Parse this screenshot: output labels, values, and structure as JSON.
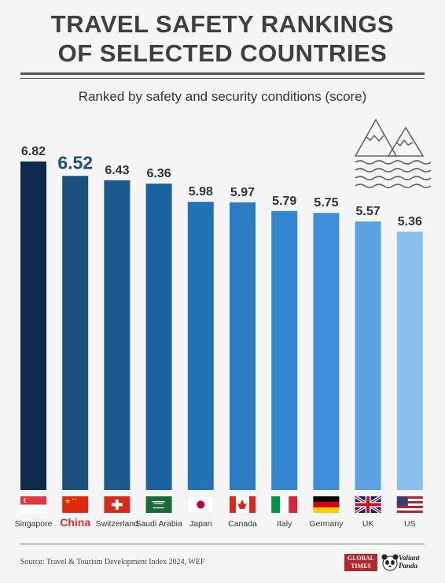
{
  "title_line1": "TRAVEL SAFETY RANKINGS",
  "title_line2": "OF SELECTED COUNTRIES",
  "subtitle": "Ranked by safety and security conditions (score)",
  "source": "Source: Travel & Tourism Development Index 2024, WEF",
  "logo_global_times": "GLOBAL TIMES",
  "logo_valiant": "Valiant",
  "logo_panda": "Panda",
  "highlight_color": "#d32f2f",
  "chart_data": {
    "type": "bar",
    "categories": [
      "Singapore",
      "China",
      "Switzerland",
      "Saudi Arabia",
      "Japan",
      "Canada",
      "Italy",
      "Germany",
      "UK",
      "US"
    ],
    "values": [
      6.82,
      6.52,
      6.43,
      6.36,
      5.98,
      5.97,
      5.79,
      5.75,
      5.57,
      5.36
    ],
    "value_labels": [
      "6.82",
      "6.52",
      "6.43",
      "6.36",
      "5.98",
      "5.97",
      "5.79",
      "5.75",
      "5.57",
      "5.36"
    ],
    "highlight": "China",
    "bar_colors": [
      "#0d2a4d",
      "#1a4f7e",
      "#1c5a8e",
      "#1d62a0",
      "#2272b8",
      "#2a7cc3",
      "#3386cf",
      "#3c8fd8",
      "#5aa2e2",
      "#8ac0ee"
    ],
    "flags": [
      "singapore-flag",
      "china-flag",
      "switzerland-flag",
      "saudi-arabia-flag",
      "japan-flag",
      "canada-flag",
      "italy-flag",
      "germany-flag",
      "uk-flag",
      "us-flag"
    ],
    "xlabel": "",
    "ylabel": "",
    "grid": false,
    "legend": "none"
  }
}
